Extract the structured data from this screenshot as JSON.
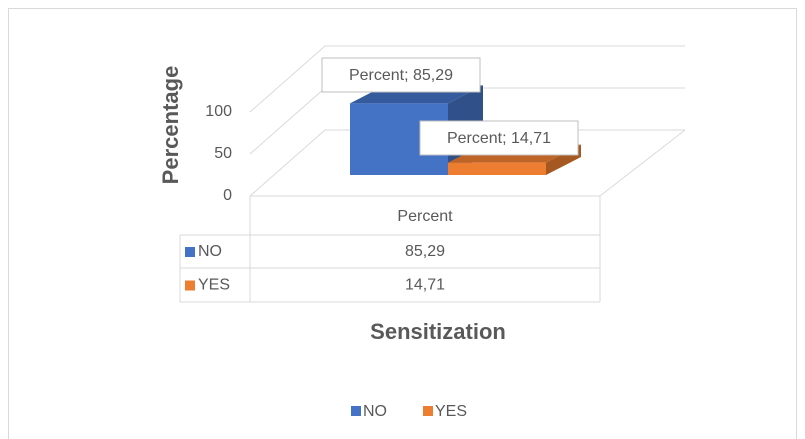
{
  "chart_data": {
    "type": "bar3d",
    "categories": [
      "Percent"
    ],
    "series": [
      {
        "name": "NO",
        "color": "#4472c4",
        "values": [
          85.29
        ],
        "value_labels": [
          "Percent; 85,29"
        ],
        "table_values": [
          "85,29"
        ]
      },
      {
        "name": "YES",
        "color": "#ed7d31",
        "values": [
          14.71
        ],
        "value_labels": [
          "Percent; 14,71"
        ],
        "table_values": [
          "14,71"
        ]
      }
    ],
    "y_label": "Percentage",
    "x_label": "Sensitization",
    "ylim": [
      0,
      100
    ],
    "yticks": [
      0,
      50,
      100
    ],
    "grid": true,
    "legend": "bottom"
  }
}
